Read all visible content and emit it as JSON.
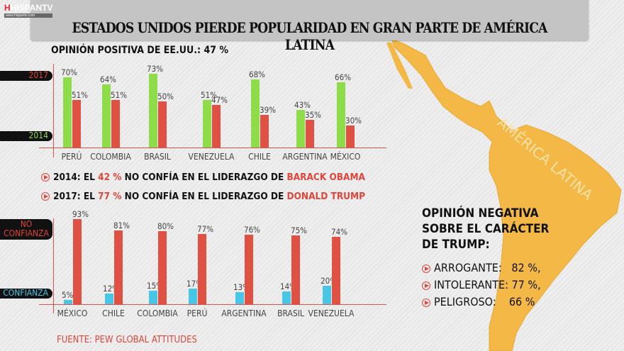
{
  "header": {
    "title": "ESTADOS UNIDOS PIERDE POPULARIDAD EN GRAN PARTE DE AMÉRICA LATINA",
    "logo": "HISPANTV",
    "logo_url": "www.hispantv.com"
  },
  "map": {
    "label": "AMÉRICA LATINA",
    "color": "#f3b845"
  },
  "chart_data": [
    {
      "type": "bar",
      "title": "OPINIÓN POSITIVA DE EE.UU.: 47 %",
      "categories": [
        "PERÚ",
        "COLOMBIA",
        "BRASIL",
        "VENEZUELA",
        "CHILE",
        "ARGENTINA",
        "MÉXICO"
      ],
      "series": [
        {
          "name": "2014",
          "color": "#8fdc4a",
          "values": [
            70,
            64,
            73,
            51,
            68,
            43,
            66
          ]
        },
        {
          "name": "2017",
          "color": "#df5143",
          "values": [
            51,
            51,
            50,
            47,
            39,
            35,
            30
          ]
        }
      ],
      "legend": {
        "2017": "2017",
        "2014": "2014",
        "placement": "left"
      },
      "ylim": [
        0,
        100
      ]
    },
    {
      "type": "bar",
      "categories": [
        "MÉXICO",
        "CHILE",
        "COLOMBIA",
        "PERÚ",
        "ARGENTINA",
        "BRASIL",
        "VENEZUELA"
      ],
      "series": [
        {
          "name": "CONFIANZA",
          "color": "#48c6e6",
          "values": [
            5,
            12,
            15,
            17,
            13,
            14,
            20
          ]
        },
        {
          "name": "NO CONFIANZA",
          "color": "#df5143",
          "values": [
            93,
            81,
            80,
            77,
            76,
            75,
            74
          ]
        }
      ],
      "legend": {
        "no": "NO CONFIANZA",
        "yes": "CONFIANZA",
        "placement": "left"
      },
      "ylim": [
        0,
        100
      ]
    }
  ],
  "statements": [
    {
      "prefix": "2014: EL ",
      "pct": "42 %",
      "middle": " NO CONFÍA EN EL LIDERAZGO DE ",
      "name": "BARACK OBAMA"
    },
    {
      "prefix": "2017: EL ",
      "pct": "77 %",
      "middle": " NO CONFÍA EN EL LIDERAZGO DE ",
      "name": "DONALD TRUMP"
    }
  ],
  "negative": {
    "title1": "OPINIÓN NEGATIVA",
    "title2": "SOBRE EL CARÁCTER",
    "title3": "DE TRUMP:",
    "items": [
      {
        "label": "ARROGANTE:   82 %,"
      },
      {
        "label": "INTOLERANTE: 77 %,"
      },
      {
        "label": "PELIGROSO:    66 %"
      }
    ]
  },
  "source": "FUENTE: PEW GLOBAL ATTITUDES"
}
